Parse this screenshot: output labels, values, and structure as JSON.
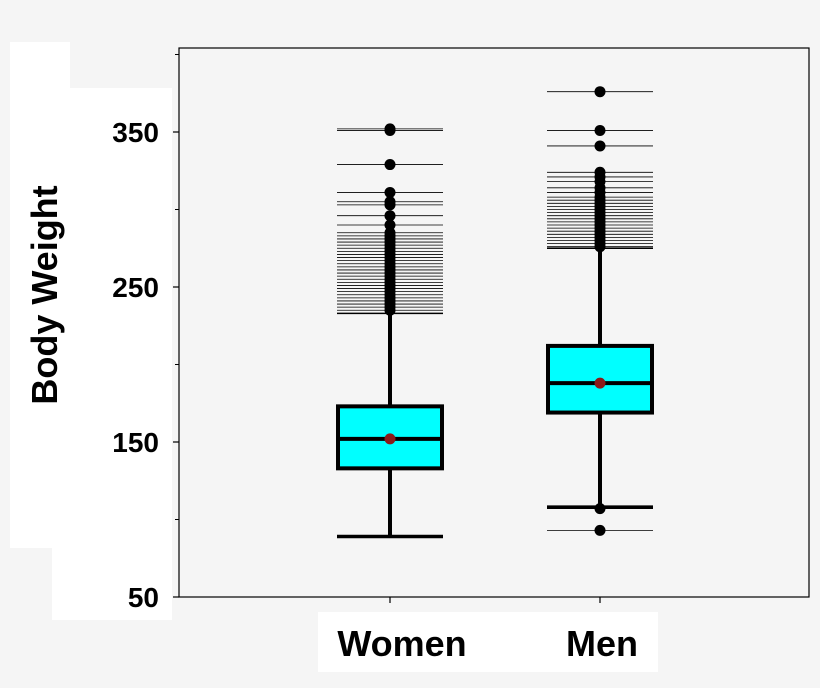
{
  "chart_data": {
    "type": "box",
    "title": "",
    "xlabel": "",
    "ylabel": "Body Weight",
    "ylim": [
      50,
      400
    ],
    "yticks_labeled": [
      50,
      150,
      250,
      350
    ],
    "yticks_minor": [
      100,
      200,
      300,
      400
    ],
    "categories": [
      "Women",
      "Men"
    ],
    "colors": {
      "box": "#00ffff",
      "mean": "#8b1a1a",
      "outlier": "#000000"
    },
    "series": [
      {
        "name": "Women",
        "whisker_low": 89,
        "q1": 133,
        "median": 152,
        "q3": 173,
        "whisker_high": 233,
        "mean": 152,
        "outliers": [
          235,
          237,
          239,
          241,
          243,
          245,
          247,
          249,
          251,
          253,
          255,
          257,
          259,
          261,
          263,
          265,
          267,
          269,
          271,
          273,
          275,
          277,
          279,
          281,
          283,
          285,
          290,
          296,
          303,
          305,
          311,
          329,
          351,
          352
        ]
      },
      {
        "name": "Men",
        "whisker_low": 108,
        "q1": 169,
        "median": 188,
        "q3": 212,
        "whisker_high": 275,
        "mean": 188,
        "outliers": [
          93,
          107,
          276,
          278,
          280,
          282,
          284,
          286,
          288,
          290,
          292,
          294,
          296,
          298,
          300,
          302,
          304,
          306,
          308,
          311,
          314,
          318,
          321,
          324,
          341,
          351,
          376
        ]
      }
    ]
  }
}
